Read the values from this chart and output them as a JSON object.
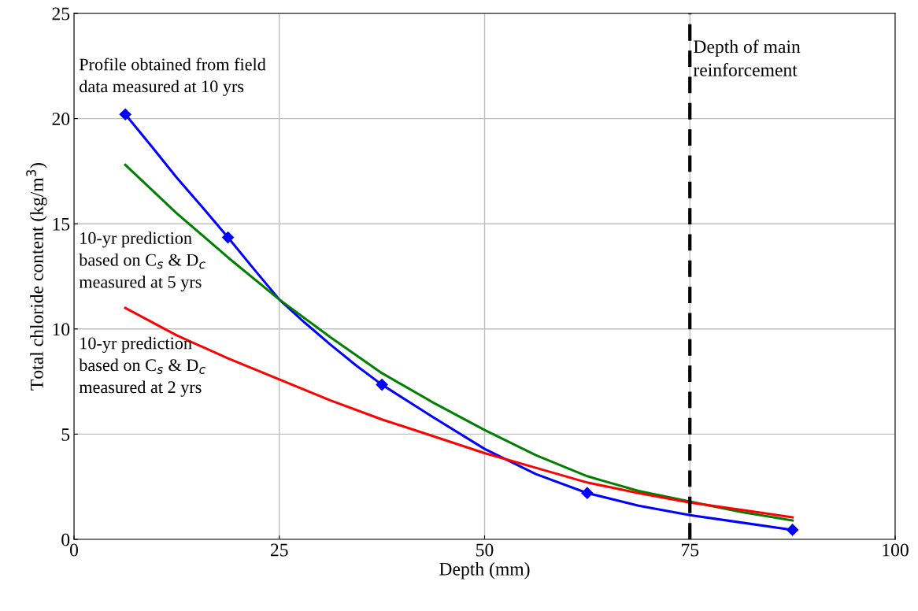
{
  "chart_data": {
    "type": "line",
    "xlabel": "Depth (mm)",
    "ylabel": "Total chloride content (kg/m$^{3}$)",
    "xlim": [
      0,
      100
    ],
    "xticks": [
      0,
      25,
      50,
      75,
      100
    ],
    "ylim": [
      0,
      25
    ],
    "yticks": [
      0,
      5,
      10,
      15,
      20,
      25
    ],
    "grid": true,
    "legend": false,
    "series": [
      {
        "color": "#0000ff",
        "marker": "none",
        "x": [
          6.25,
          9.4,
          12.5,
          15.6,
          18.75,
          21.9,
          25,
          28.1,
          31.25,
          34.4,
          37.5,
          43.75,
          50,
          56.25,
          62.5,
          68.75,
          75,
          81.25,
          87.5
        ],
        "values": [
          20.2,
          18.7,
          17.2,
          15.8,
          14.35,
          12.85,
          11.4,
          10.3,
          9.25,
          8.25,
          7.35,
          5.8,
          4.3,
          3.1,
          2.2,
          1.6,
          1.15,
          0.8,
          0.45
        ]
      },
      {
        "type": "scatter",
        "color": "#0000ff",
        "marker": "diamond",
        "x": [
          6.25,
          18.75,
          37.5,
          62.5,
          87.5
        ],
        "values": [
          20.2,
          14.35,
          7.35,
          2.2,
          0.45
        ]
      },
      {
        "color": "#008000",
        "marker": "none",
        "x": [
          6.25,
          12.5,
          18.75,
          25,
          31.25,
          37.5,
          43.75,
          50,
          56.25,
          62.5,
          68.75,
          75,
          81.25,
          87.5
        ],
        "values": [
          17.8,
          15.5,
          13.4,
          11.4,
          9.6,
          7.9,
          6.5,
          5.2,
          4.0,
          3.0,
          2.3,
          1.8,
          1.3,
          0.9
        ]
      },
      {
        "color": "#ff0000",
        "marker": "none",
        "x": [
          6.25,
          12.5,
          18.75,
          25,
          31.25,
          37.5,
          43.75,
          50,
          56.25,
          62.5,
          68.75,
          75,
          81.25,
          87.5
        ],
        "values": [
          11.0,
          9.7,
          8.6,
          7.6,
          6.6,
          5.7,
          4.9,
          4.1,
          3.4,
          2.7,
          2.2,
          1.75,
          1.4,
          1.05
        ]
      }
    ],
    "ref_lines": [
      {
        "axis": "x",
        "value": 75,
        "label": "Depth of main\nreinforcement",
        "color": "#000000",
        "line_style": "dashed"
      }
    ],
    "annotations": [
      "Profile obtained from field\ndata measured at 10 yrs",
      "10-yr prediction\nbased on C$_{s}$ & D$_{c}$\nmeasured at 5 yrs",
      "10-yr prediction\nbased on C$_{s}$ & D$_{c}$\nmeasured at 2 yrs"
    ]
  }
}
